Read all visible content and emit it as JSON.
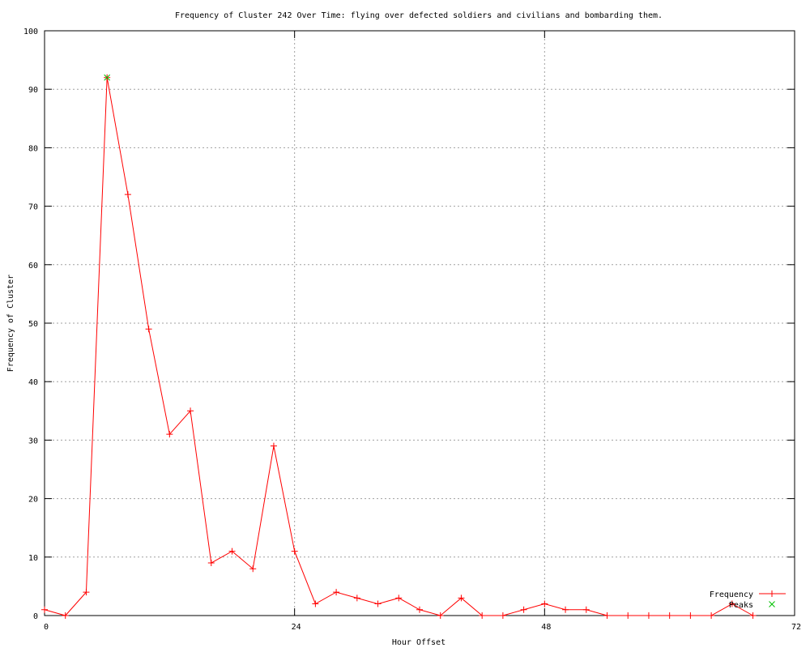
{
  "chart_data": {
    "type": "line",
    "title": "Frequency of Cluster 242 Over Time: flying over defected soldiers and civilians and bombarding them.",
    "xlabel": "Hour Offset",
    "ylabel": "Frequency of Cluster",
    "xlim": [
      0,
      72
    ],
    "ylim": [
      0,
      100
    ],
    "xticks": [
      0,
      24,
      48,
      72
    ],
    "yticks": [
      0,
      10,
      20,
      30,
      40,
      50,
      60,
      70,
      80,
      90,
      100
    ],
    "grid": true,
    "legend_position": "bottom-right",
    "series": [
      {
        "name": "Frequency",
        "color": "#ff0000",
        "marker": "plus",
        "x": [
          0,
          2,
          4,
          6,
          8,
          10,
          12,
          14,
          16,
          18,
          20,
          22,
          24,
          26,
          28,
          30,
          32,
          34,
          36,
          38,
          40,
          42,
          44,
          46,
          48,
          50,
          52,
          54,
          56,
          58,
          60,
          62,
          64,
          66,
          68
        ],
        "y": [
          1,
          0,
          4,
          92,
          72,
          49,
          31,
          35,
          9,
          11,
          8,
          29,
          11,
          2,
          4,
          3,
          2,
          3,
          1,
          0,
          3,
          0,
          0,
          1,
          2,
          1,
          1,
          0,
          0,
          0,
          0,
          0,
          0,
          2,
          0
        ]
      },
      {
        "name": "Peaks",
        "color": "#00c000",
        "marker": "x",
        "x": [
          6
        ],
        "y": [
          92
        ]
      }
    ]
  }
}
